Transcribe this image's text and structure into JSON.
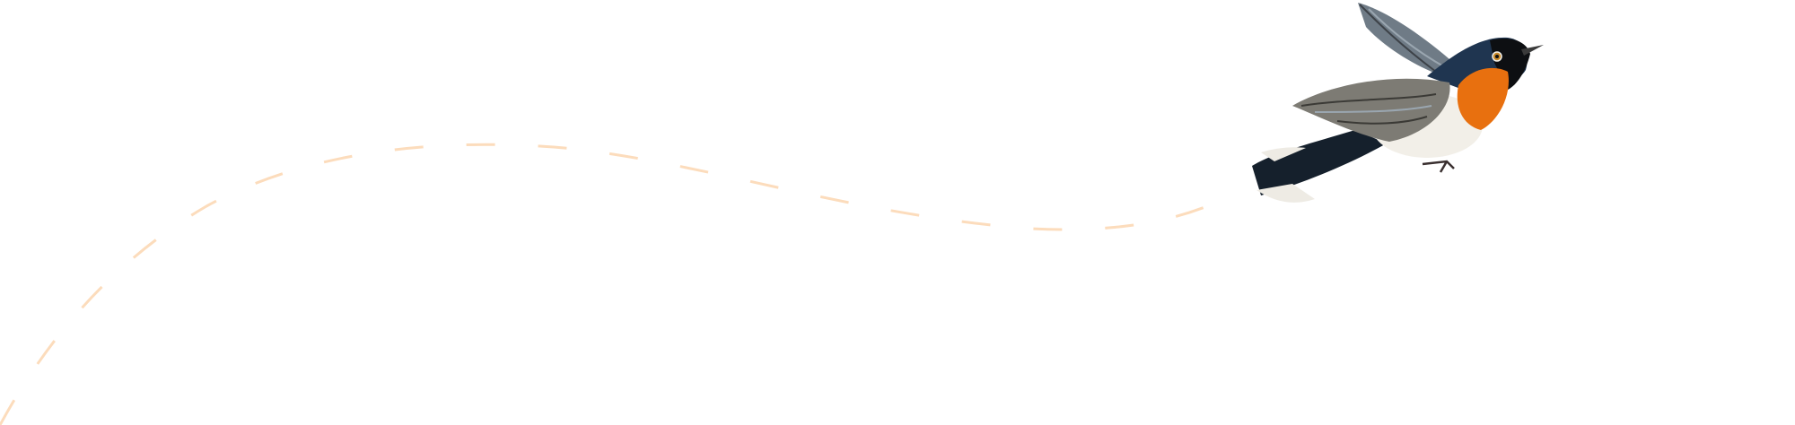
{
  "illustration": {
    "subject": "bird-illustration",
    "icon": "bird-icon",
    "flight_path": "dashed-curve"
  },
  "colors": {
    "background": "#ffffff",
    "path": "#fcdcbc",
    "bird_throat": "#e8700f",
    "bird_head": "#1f3550",
    "bird_belly": "#f2efe8",
    "bird_wing": "#7d7b74"
  }
}
